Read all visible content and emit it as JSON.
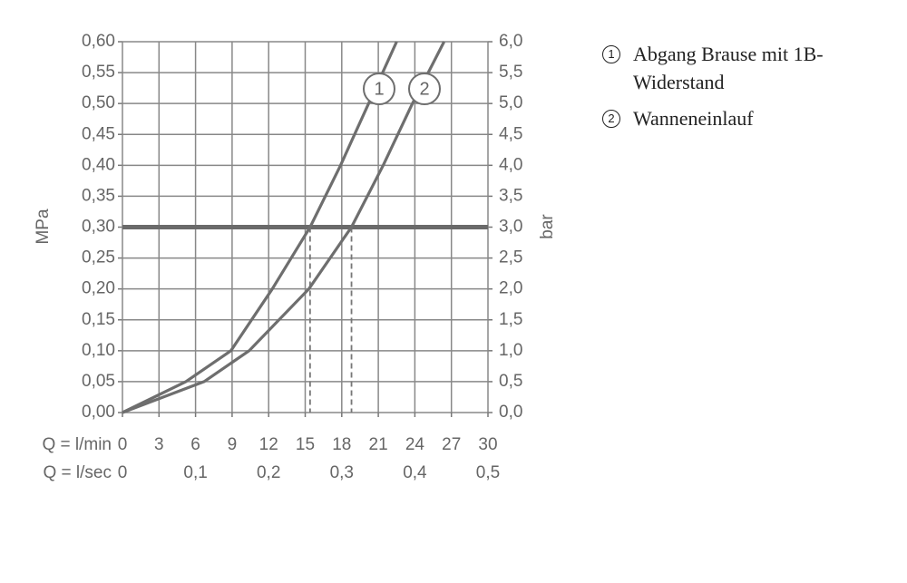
{
  "chart_data": {
    "type": "line",
    "xlabel": "Q = l/min",
    "x2label": "Q = l/sec",
    "ylabel": "MPa",
    "y2label": "bar",
    "xlim": [
      0,
      30
    ],
    "xticks": [
      0,
      3,
      6,
      9,
      12,
      15,
      18,
      21,
      24,
      27,
      30
    ],
    "x2lim": [
      0,
      0.5
    ],
    "x2ticks": [
      {
        "value": 0,
        "label": "0"
      },
      {
        "value": 0.1,
        "label": "0,1"
      },
      {
        "value": 0.2,
        "label": "0,2"
      },
      {
        "value": 0.3,
        "label": "0,3"
      },
      {
        "value": 0.4,
        "label": "0,4"
      },
      {
        "value": 0.5,
        "label": "0,5"
      }
    ],
    "ylim": [
      0,
      0.6
    ],
    "yticks": [
      {
        "value": 0,
        "label": "0,00"
      },
      {
        "value": 0.05,
        "label": "0,05"
      },
      {
        "value": 0.1,
        "label": "0,10"
      },
      {
        "value": 0.15,
        "label": "0,15"
      },
      {
        "value": 0.2,
        "label": "0,20"
      },
      {
        "value": 0.25,
        "label": "0,25"
      },
      {
        "value": 0.3,
        "label": "0,30"
      },
      {
        "value": 0.35,
        "label": "0,35"
      },
      {
        "value": 0.4,
        "label": "0,40"
      },
      {
        "value": 0.45,
        "label": "0,45"
      },
      {
        "value": 0.5,
        "label": "0,50"
      },
      {
        "value": 0.55,
        "label": "0,55"
      },
      {
        "value": 0.6,
        "label": "0,60"
      }
    ],
    "y2lim": [
      0,
      6
    ],
    "y2ticks": [
      {
        "value": 0,
        "label": "0,0"
      },
      {
        "value": 0.5,
        "label": "0,5"
      },
      {
        "value": 1,
        "label": "1,0"
      },
      {
        "value": 1.5,
        "label": "1,5"
      },
      {
        "value": 2,
        "label": "2,0"
      },
      {
        "value": 2.5,
        "label": "2,5"
      },
      {
        "value": 3,
        "label": "3,0"
      },
      {
        "value": 3.5,
        "label": "3,5"
      },
      {
        "value": 4,
        "label": "4,0"
      },
      {
        "value": 4.5,
        "label": "4,5"
      },
      {
        "value": 5,
        "label": "5,0"
      },
      {
        "value": 5.5,
        "label": "5,5"
      },
      {
        "value": 6,
        "label": "6,0"
      }
    ],
    "grid": true,
    "reference_y": 0.3,
    "reference_x": [
      15.4,
      18.8
    ],
    "series": [
      {
        "name": "Abgang Brause mit 1B-Widerstand",
        "label": "1",
        "color": "#6e6e6e",
        "x": [
          0,
          5.2,
          8.9,
          12.3,
          15.4,
          17.9,
          20.2,
          22.5
        ],
        "values": [
          0,
          0.05,
          0.1,
          0.2,
          0.3,
          0.4,
          0.5,
          0.6
        ]
      },
      {
        "name": "Wanneneinlauf",
        "label": "2",
        "color": "#6e6e6e",
        "x": [
          0,
          6.7,
          10.4,
          15.3,
          18.8,
          21.4,
          23.8,
          26.4
        ],
        "values": [
          0,
          0.05,
          0.1,
          0.2,
          0.3,
          0.4,
          0.5,
          0.6
        ]
      }
    ]
  }
}
